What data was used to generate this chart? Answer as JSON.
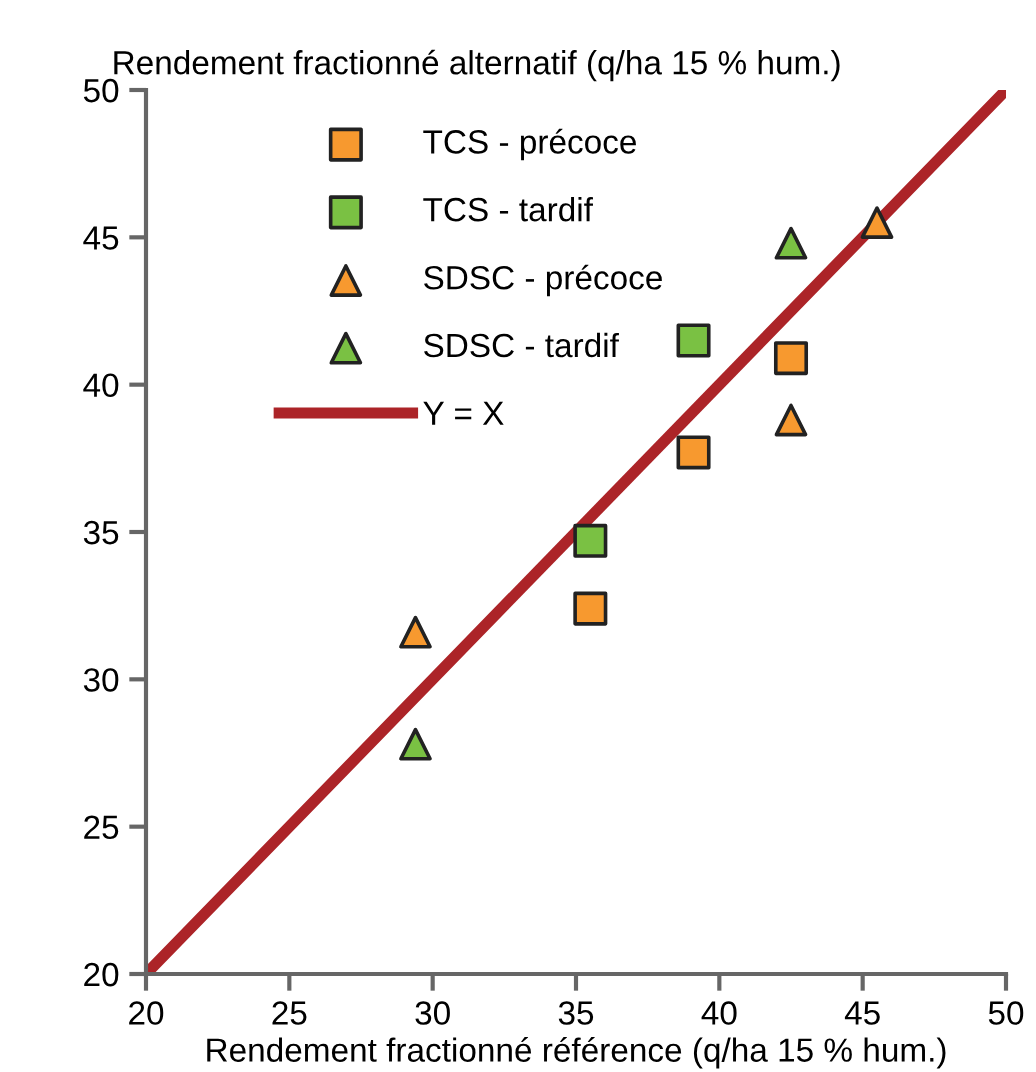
{
  "chart_data": {
    "type": "scatter",
    "xlabel": "Rendement fractionné référence (q/ha 15 % hum.)",
    "ylabel": "Rendement fractionné alternatif (q/ha 15 % hum.)",
    "xlim": [
      20,
      50
    ],
    "ylim": [
      20,
      50
    ],
    "xticks": [
      20,
      25,
      30,
      35,
      40,
      45,
      50
    ],
    "yticks": [
      20,
      25,
      30,
      35,
      40,
      45,
      50
    ],
    "grid": false,
    "legend": "top left",
    "series": [
      {
        "name": "TCS - précoce",
        "color": "#f7992f",
        "marker": "square",
        "x": [
          35.5,
          39.1,
          42.5
        ],
        "values": [
          32.4,
          37.7,
          40.9
        ]
      },
      {
        "name": "TCS - tardif",
        "color": "#7ac143",
        "marker": "square",
        "x": [
          35.5,
          39.1
        ],
        "values": [
          34.7,
          41.5
        ]
      },
      {
        "name": "SDSC - précoce",
        "color": "#f7992f",
        "marker": "triangle",
        "x": [
          29.4,
          42.5,
          45.5
        ],
        "values": [
          31.6,
          38.8,
          45.5
        ]
      },
      {
        "name": "SDSC - tardif",
        "color": "#7ac143",
        "marker": "triangle",
        "x": [
          29.4,
          42.5
        ],
        "values": [
          27.8,
          44.8
        ]
      },
      {
        "name": "Y = X",
        "type": "line",
        "color": "#ac2428",
        "marker": "none",
        "line_style": "solid",
        "x": [
          20,
          50
        ],
        "values": [
          20,
          50
        ]
      }
    ]
  }
}
